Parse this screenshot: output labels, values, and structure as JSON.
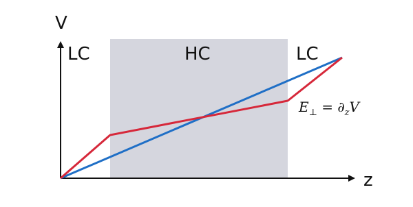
{
  "axes": {
    "y_label": "V",
    "x_label": "z"
  },
  "regions": [
    "LC",
    "HC",
    "LC"
  ],
  "equation": {
    "base": "E",
    "sub1": "⊥",
    "mid": " = ∂",
    "sub2": "z",
    "end": "V"
  }
}
